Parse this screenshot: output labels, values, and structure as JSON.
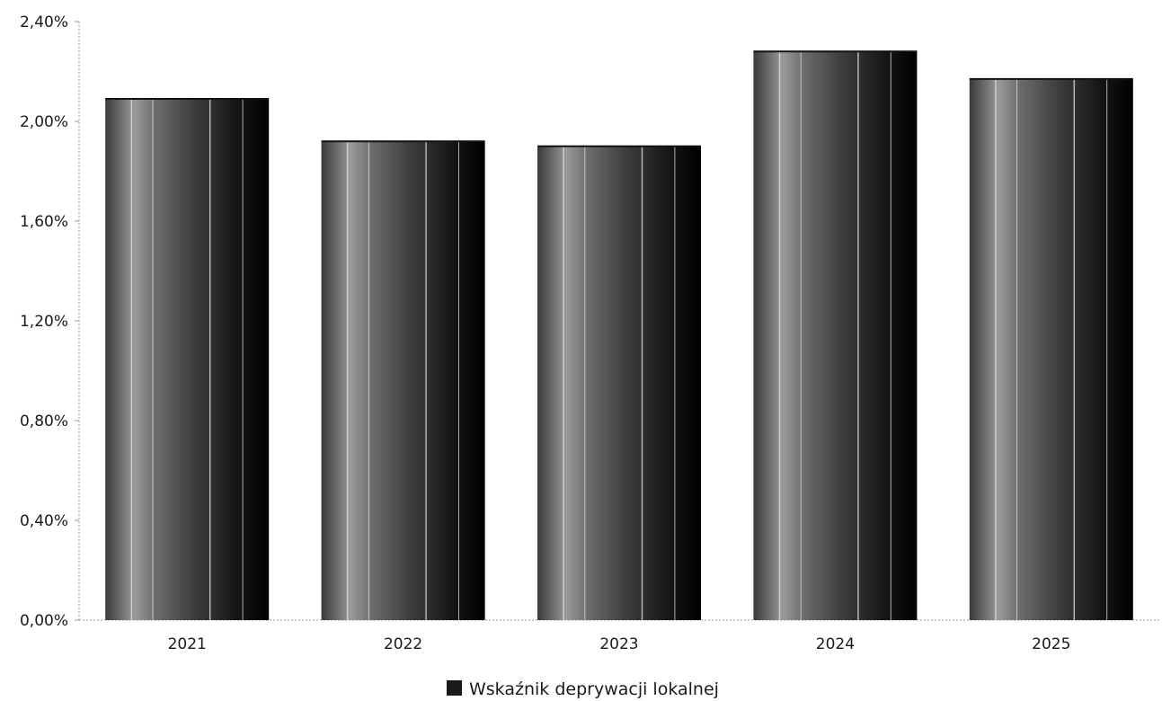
{
  "chart_data": {
    "type": "bar",
    "title": "",
    "xlabel": "",
    "ylabel": "",
    "categories": [
      "2021",
      "2022",
      "2023",
      "2024",
      "2025"
    ],
    "series": [
      {
        "name": "Wskaźnik deprywacji lokalnej",
        "values": [
          2.09,
          1.92,
          1.9,
          2.28,
          2.17
        ],
        "color": "#1a1a1a"
      }
    ],
    "ylim": [
      0,
      2.4
    ],
    "yticks": [
      0,
      0.4,
      0.8,
      1.2,
      1.6,
      2.0,
      2.4
    ],
    "ytick_labels": [
      "0,00%",
      "0,40%",
      "0,80%",
      "1,20%",
      "1,60%",
      "2,00%",
      "2,40%"
    ],
    "grid": false,
    "legend_position": "bottom-center"
  }
}
